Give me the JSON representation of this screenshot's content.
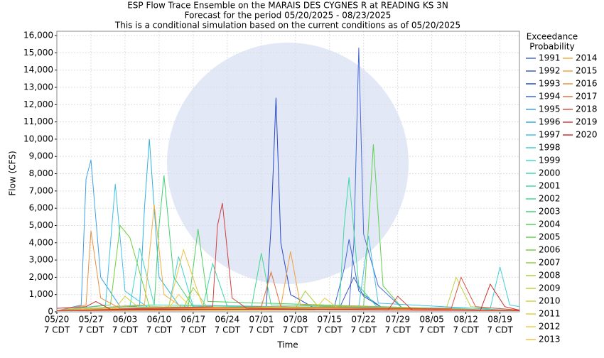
{
  "chart_data": {
    "type": "line",
    "title": [
      "ESP Flow Trace Ensemble on the MARAIS DES CYGNES R at READING KS 3N",
      "Forecast for the period 05/20/2025 - 08/23/2025",
      "This is a conditional simulation based on the current conditions as of 05/20/2025"
    ],
    "x_label": "Time",
    "y_label": "Flow (CFS)",
    "legend_title": [
      "Exceedance",
      "Probability"
    ],
    "xlim": [
      "05/20",
      "08/23"
    ],
    "ylim": [
      0,
      16250
    ],
    "xticks": [
      "05/20",
      "05/27",
      "06/03",
      "06/10",
      "06/17",
      "06/24",
      "07/01",
      "07/08",
      "07/15",
      "07/22",
      "07/29",
      "08/05",
      "08/12",
      "08/19"
    ],
    "xtick_suffix": "7 CDT",
    "yticks": [
      0,
      {
        "value": 1000,
        "label": "1,000"
      },
      {
        "value": 2000,
        "label": "2,000"
      },
      {
        "value": 3000,
        "label": "3,000"
      },
      {
        "value": 4000,
        "label": "4,000"
      },
      {
        "value": 5000,
        "label": "5,000"
      },
      {
        "value": 6000,
        "label": "6,000"
      },
      {
        "value": 7000,
        "label": "7,000"
      },
      {
        "value": 8000,
        "label": "8,000"
      },
      {
        "value": 9000,
        "label": "9,000"
      },
      {
        "value": 10000,
        "label": "10,000"
      },
      {
        "value": 11000,
        "label": "11,000"
      },
      {
        "value": 12000,
        "label": "12,000"
      },
      {
        "value": 13000,
        "label": "13,000"
      },
      {
        "value": 14000,
        "label": "14,000"
      },
      {
        "value": 15000,
        "label": "15,000"
      },
      {
        "value": 16000,
        "label": "16,000"
      }
    ],
    "grid": true,
    "series": [
      {
        "name": "1991",
        "color": "#4a6ad8",
        "x": [
          "05/20",
          "07/19",
          "07/20",
          "07/21",
          "07/22",
          "07/25",
          "07/30",
          "08/23"
        ],
        "values": [
          60,
          300,
          4000,
          15300,
          4500,
          1500,
          200,
          60
        ]
      },
      {
        "name": "1992",
        "color": "#3a5cc0",
        "x": [
          "05/20",
          "07/17",
          "07/20",
          "07/22",
          "07/26",
          "08/23"
        ],
        "values": [
          80,
          200,
          2000,
          900,
          200,
          80
        ]
      },
      {
        "name": "1993",
        "color": "#2848c8",
        "x": [
          "05/20",
          "07/02",
          "07/03",
          "07/04",
          "07/05",
          "07/07",
          "07/12",
          "08/23"
        ],
        "values": [
          60,
          300,
          5000,
          12400,
          4000,
          1000,
          200,
          60
        ]
      },
      {
        "name": "1994",
        "color": "#3868d8",
        "x": [
          "05/20",
          "07/16",
          "07/18",
          "07/19",
          "07/21",
          "07/26",
          "08/23"
        ],
        "values": [
          60,
          300,
          2500,
          4200,
          1200,
          200,
          60
        ]
      },
      {
        "name": "1995",
        "color": "#40a0e8",
        "x": [
          "05/20",
          "05/25",
          "05/26",
          "05/27",
          "05/29",
          "06/02",
          "08/23"
        ],
        "values": [
          60,
          400,
          7700,
          8800,
          2000,
          300,
          60
        ]
      },
      {
        "name": "1996",
        "color": "#30b0e0",
        "x": [
          "05/20",
          "06/06",
          "06/07",
          "06/08",
          "06/10",
          "06/14",
          "08/23"
        ],
        "values": [
          60,
          400,
          6000,
          10000,
          2000,
          400,
          60
        ]
      },
      {
        "name": "1997",
        "color": "#40c0e8",
        "x": [
          "05/20",
          "05/30",
          "06/01",
          "06/03",
          "06/08",
          "07/21",
          "07/23",
          "07/25",
          "08/23"
        ],
        "values": [
          60,
          400,
          7400,
          1200,
          200,
          300,
          4400,
          500,
          60
        ]
      },
      {
        "name": "1998",
        "color": "#40d0d8",
        "x": [
          "05/20",
          "06/12",
          "06/14",
          "06/17",
          "08/17",
          "08/19",
          "08/21",
          "08/23"
        ],
        "values": [
          60,
          300,
          3200,
          300,
          200,
          2600,
          400,
          300
        ]
      },
      {
        "name": "1999",
        "color": "#40d8c8",
        "x": [
          "05/20",
          "06/04",
          "06/06",
          "06/09",
          "08/23"
        ],
        "values": [
          60,
          300,
          3700,
          400,
          60
        ]
      },
      {
        "name": "2000",
        "color": "#40d8b0",
        "x": [
          "05/20",
          "06/19",
          "06/21",
          "06/24",
          "08/23"
        ],
        "values": [
          60,
          300,
          2800,
          300,
          60
        ]
      },
      {
        "name": "2001",
        "color": "#40d8a0",
        "x": [
          "05/20",
          "07/17",
          "07/18",
          "07/19",
          "07/21",
          "07/25",
          "08/23"
        ],
        "values": [
          60,
          300,
          5000,
          7800,
          1500,
          200,
          60
        ]
      },
      {
        "name": "2002",
        "color": "#40d890",
        "x": [
          "05/20",
          "06/29",
          "07/01",
          "07/03",
          "08/23"
        ],
        "values": [
          60,
          300,
          3400,
          400,
          60
        ]
      },
      {
        "name": "2003",
        "color": "#40d070",
        "x": [
          "05/20",
          "06/09",
          "06/10",
          "06/11",
          "06/13",
          "06/17",
          "08/23"
        ],
        "values": [
          60,
          400,
          5000,
          7900,
          2000,
          300,
          60
        ]
      },
      {
        "name": "2004",
        "color": "#50d060",
        "x": [
          "05/20",
          "06/16",
          "06/18",
          "06/20",
          "08/23"
        ],
        "values": [
          60,
          300,
          4800,
          600,
          60
        ]
      },
      {
        "name": "2005",
        "color": "#60d050",
        "x": [
          "05/20",
          "07/22",
          "07/23",
          "07/24",
          "07/26",
          "07/30",
          "08/23"
        ],
        "values": [
          60,
          300,
          5000,
          9700,
          1500,
          200,
          60
        ]
      },
      {
        "name": "2006",
        "color": "#70d040",
        "x": [
          "05/20",
          "05/31",
          "06/02",
          "06/04",
          "06/08",
          "08/23"
        ],
        "values": [
          60,
          400,
          5000,
          4300,
          300,
          60
        ]
      },
      {
        "name": "2007",
        "color": "#90d040",
        "x": [
          "05/20",
          "06/15",
          "06/17",
          "06/20",
          "08/23"
        ],
        "values": [
          60,
          200,
          1400,
          200,
          60
        ]
      },
      {
        "name": "2008",
        "color": "#a8d040",
        "x": [
          "05/20",
          "07/08",
          "07/10",
          "07/13",
          "08/23"
        ],
        "values": [
          60,
          200,
          1200,
          200,
          60
        ]
      },
      {
        "name": "2009",
        "color": "#c0d040",
        "x": [
          "05/20",
          "08/08",
          "08/10",
          "08/13",
          "08/23"
        ],
        "values": [
          60,
          200,
          2000,
          300,
          100
        ]
      },
      {
        "name": "2010",
        "color": "#d0d040",
        "x": [
          "05/20",
          "06/01",
          "06/03",
          "06/06",
          "08/23"
        ],
        "values": [
          60,
          200,
          900,
          200,
          60
        ]
      },
      {
        "name": "2011",
        "color": "#e0d040",
        "x": [
          "05/20",
          "07/12",
          "07/14",
          "07/17",
          "08/23"
        ],
        "values": [
          60,
          100,
          800,
          150,
          60
        ]
      },
      {
        "name": "2012",
        "color": "#f0d040",
        "x": [
          "05/20",
          "06/12",
          "06/14",
          "06/17",
          "08/23"
        ],
        "values": [
          60,
          200,
          1000,
          150,
          60
        ]
      },
      {
        "name": "2013",
        "color": "#f0c040",
        "x": [
          "05/20",
          "06/12",
          "06/15",
          "06/19",
          "08/23"
        ],
        "values": [
          60,
          300,
          3600,
          300,
          60
        ]
      },
      {
        "name": "2014",
        "color": "#f0b040",
        "x": [
          "05/20",
          "06/07",
          "06/09",
          "06/11",
          "06/15",
          "08/23"
        ],
        "values": [
          60,
          400,
          6200,
          1000,
          200,
          60
        ]
      },
      {
        "name": "2015",
        "color": "#f0a040",
        "x": [
          "05/20",
          "07/05",
          "07/07",
          "07/09",
          "08/23"
        ],
        "values": [
          60,
          300,
          3500,
          400,
          60
        ]
      },
      {
        "name": "2016",
        "color": "#e89040",
        "x": [
          "05/20",
          "05/26",
          "05/27",
          "05/29",
          "06/02",
          "08/23"
        ],
        "values": [
          60,
          400,
          4700,
          800,
          200,
          60
        ]
      },
      {
        "name": "2017",
        "color": "#e07040",
        "x": [
          "05/20",
          "07/01",
          "07/03",
          "07/05",
          "08/23"
        ],
        "values": [
          60,
          300,
          2300,
          300,
          60
        ]
      },
      {
        "name": "2018",
        "color": "#d85040",
        "x": [
          "05/20",
          "08/09",
          "08/11",
          "08/14",
          "08/23"
        ],
        "values": [
          60,
          200,
          2000,
          300,
          100
        ]
      },
      {
        "name": "2019",
        "color": "#d04040",
        "x": [
          "05/20",
          "06/21",
          "06/22",
          "06/23",
          "06/25",
          "06/28",
          "07/27",
          "07/29",
          "08/01",
          "08/23"
        ],
        "values": [
          60,
          300,
          5000,
          6300,
          800,
          200,
          100,
          900,
          100,
          60
        ]
      },
      {
        "name": "2020",
        "color": "#c83030",
        "x": [
          "05/20",
          "05/26",
          "05/28",
          "05/31",
          "08/15",
          "08/17",
          "08/20",
          "08/23"
        ],
        "values": [
          200,
          300,
          600,
          150,
          100,
          1600,
          300,
          100
        ]
      }
    ]
  }
}
